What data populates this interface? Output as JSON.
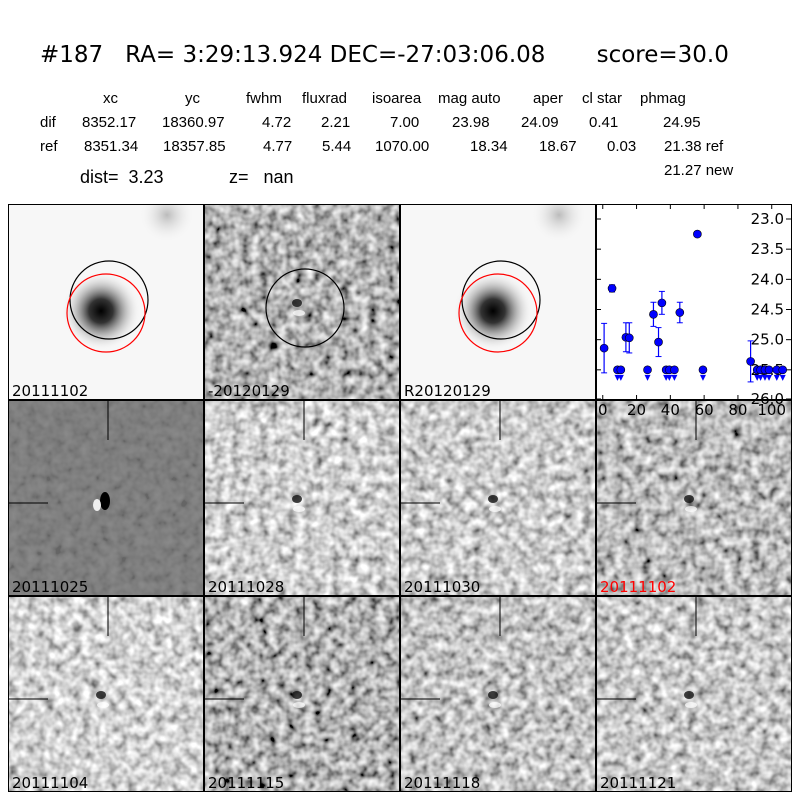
{
  "header": {
    "title": "#187   RA= 3:29:13.924 DEC=-27:03:06.08       score=30.0"
  },
  "table": {
    "columns": [
      "xc",
      "yc",
      "fwhm",
      "fluxrad",
      "isoarea",
      "mag auto",
      "aper",
      "cl star",
      "phmag"
    ],
    "rows": [
      {
        "label": "dif",
        "values": [
          "8352.17",
          "18360.97",
          "4.72",
          "2.21",
          "7.00",
          "23.98",
          "24.09",
          "0.41",
          "24.95"
        ]
      },
      {
        "label": "ref",
        "values": [
          "8351.34",
          "18357.85",
          "4.77",
          "5.44",
          "1070.00",
          "18.34",
          "18.67",
          "0.03",
          "21.38 ref"
        ]
      }
    ],
    "extra": "21.27 new"
  },
  "info": {
    "dist": "dist=  3.23",
    "z": "z=   nan"
  },
  "stamps": [
    {
      "label": "20111102",
      "kind": "ref-circles"
    },
    {
      "label": "-20120129",
      "kind": "diff-circle"
    },
    {
      "label": "R20120129",
      "kind": "ref-circles"
    },
    {
      "label": "20111025",
      "kind": "epoch"
    },
    {
      "label": "20111028",
      "kind": "epoch"
    },
    {
      "label": "20111030",
      "kind": "epoch"
    },
    {
      "label": "20111102",
      "kind": "epoch",
      "highlight": true
    },
    {
      "label": "20111104",
      "kind": "epoch"
    },
    {
      "label": "20111115",
      "kind": "epoch"
    },
    {
      "label": "20111118",
      "kind": "epoch"
    },
    {
      "label": "20111121",
      "kind": "epoch"
    }
  ],
  "colors": {
    "points": "#0000ff",
    "circle_black": "#000000",
    "circle_red": "#ff0000",
    "highlight_label": "#ff0000"
  },
  "chart_data": {
    "type": "scatter",
    "xlim": [
      -4,
      112
    ],
    "ylim": [
      26.0,
      23.0
    ],
    "y_inverted": true,
    "xticks": [
      "0",
      "20",
      "40",
      "60",
      "80",
      "100"
    ],
    "yticks": [
      "23.0",
      "23.5",
      "24.0",
      "24.5",
      "25.0",
      "25.5",
      "26.0"
    ],
    "detections": [
      {
        "x": 0.8,
        "y": 25.14,
        "err": 0.41
      },
      {
        "x": 5.5,
        "y": 24.15,
        "err": 0.06
      },
      {
        "x": 13.7,
        "y": 24.96,
        "err": 0.24
      },
      {
        "x": 15.7,
        "y": 24.97,
        "err": 0.25
      },
      {
        "x": 30,
        "y": 24.58,
        "err": 0.2
      },
      {
        "x": 33,
        "y": 25.04,
        "err": 0.24
      },
      {
        "x": 35,
        "y": 24.39,
        "err": 0.19
      },
      {
        "x": 45.6,
        "y": 24.55,
        "err": 0.17
      },
      {
        "x": 56,
        "y": 23.25,
        "err": 0.04
      },
      {
        "x": 87.5,
        "y": 25.36,
        "err": 0.34
      }
    ],
    "upper_limits": {
      "y": 25.5,
      "x": [
        8.7,
        10.7,
        26.5,
        37.5,
        39.4,
        42.4,
        59.3,
        91.4,
        93.4,
        96,
        98.4,
        103,
        106.5
      ]
    }
  }
}
